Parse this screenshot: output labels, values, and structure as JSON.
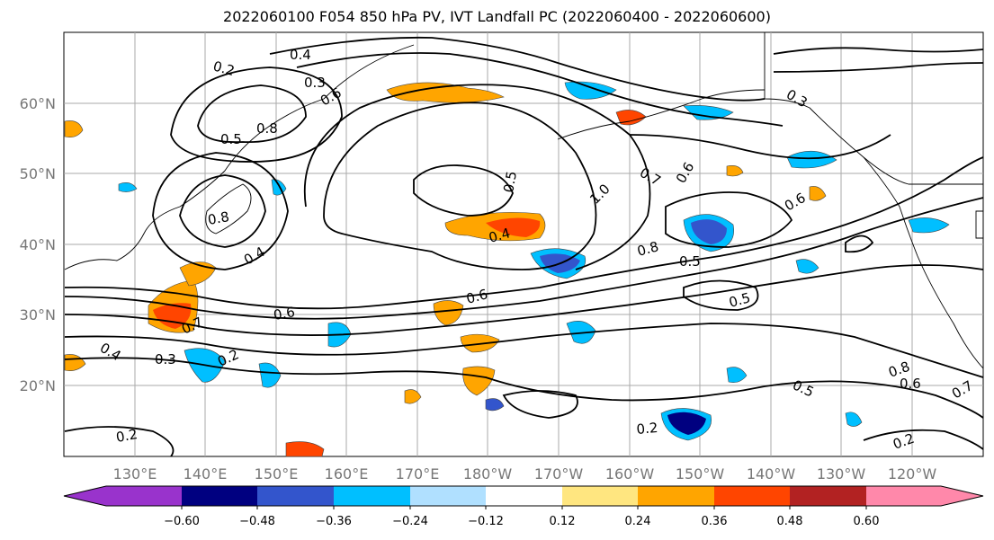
{
  "title": "2022060100 F054 850 hPa PV, IVT Landfall PC (2022060400 - 2022060600)",
  "map": {
    "lon_labels": [
      "130°E",
      "140°E",
      "150°E",
      "160°E",
      "170°E",
      "180°W",
      "170°W",
      "160°W",
      "150°W",
      "140°W",
      "130°W",
      "120°W"
    ],
    "lat_labels": [
      "60°N",
      "50°N",
      "40°N",
      "30°N",
      "20°N"
    ],
    "contour_labels": [
      {
        "text": "0.2"
      },
      {
        "text": "0.4"
      },
      {
        "text": "0.3"
      },
      {
        "text": "0.5"
      },
      {
        "text": "0.8"
      },
      {
        "text": "0.6"
      },
      {
        "text": "0.4"
      },
      {
        "text": "0.5"
      },
      {
        "text": "0.6"
      },
      {
        "text": "0.7"
      },
      {
        "text": "0.8"
      },
      {
        "text": "1.0"
      },
      {
        "text": "0.6"
      },
      {
        "text": "0.5"
      },
      {
        "text": "0.8"
      },
      {
        "text": "0.4"
      },
      {
        "text": "0.6"
      },
      {
        "text": "0.5"
      },
      {
        "text": "0.7"
      },
      {
        "text": "0.3"
      },
      {
        "text": "0.2"
      },
      {
        "text": "0.5"
      },
      {
        "text": "0.8"
      },
      {
        "text": "0.6"
      },
      {
        "text": "0.2"
      },
      {
        "text": "0.4"
      },
      {
        "text": "0.6"
      },
      {
        "text": "0.3"
      },
      {
        "text": "0.2"
      },
      {
        "text": "0.7"
      },
      {
        "text": "0.2"
      }
    ]
  },
  "colorbar": {
    "ticks": [
      "−0.60",
      "−0.48",
      "−0.36",
      "−0.24",
      "−0.12",
      "0.12",
      "0.24",
      "0.36",
      "0.48",
      "0.60"
    ],
    "colors": [
      "#9933cc",
      "#000080",
      "#3355cc",
      "#00bfff",
      "#b0e0ff",
      "#ffffff",
      "#ffe680",
      "#ffa500",
      "#ff4500",
      "#b22222",
      "#ff88aa"
    ]
  }
}
